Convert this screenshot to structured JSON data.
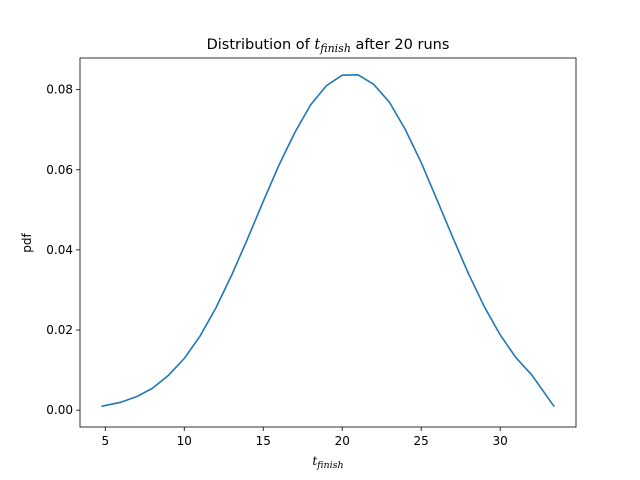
{
  "chart_data": {
    "type": "line",
    "title": {
      "prefix": "Distribution of ",
      "var": "t",
      "sub": "finish",
      "suffix": " after 20 runs"
    },
    "xlabel": {
      "var": "t",
      "sub": "finish"
    },
    "ylabel": "pdf",
    "xlim": [
      3.4,
      34.8
    ],
    "ylim": [
      -0.0042,
      0.0879
    ],
    "xticks": [
      5,
      10,
      15,
      20,
      25,
      30
    ],
    "xtick_labels": [
      "5",
      "10",
      "15",
      "20",
      "25",
      "30"
    ],
    "yticks": [
      0.0,
      0.02,
      0.04,
      0.06,
      0.08
    ],
    "ytick_labels": [
      "0.00",
      "0.02",
      "0.04",
      "0.06",
      "0.08"
    ],
    "grid": false,
    "line_color": "#1f77b4",
    "series": [
      {
        "x": [
          4.8,
          6.0,
          7.0,
          8.0,
          9.0,
          10.0,
          11.0,
          12.0,
          13.0,
          14.0,
          15.0,
          16.0,
          17.0,
          18.0,
          19.0,
          20.0,
          21.0,
          22.0,
          23.0,
          24.0,
          25.0,
          26.0,
          27.0,
          28.0,
          29.0,
          30.0,
          31.0,
          32.0,
          33.4
        ],
        "y": [
          0.001,
          0.002,
          0.0034,
          0.0055,
          0.0087,
          0.0129,
          0.0185,
          0.0255,
          0.0337,
          0.0427,
          0.0521,
          0.0612,
          0.0693,
          0.0762,
          0.081,
          0.0836,
          0.0837,
          0.0813,
          0.0768,
          0.07,
          0.0618,
          0.0525,
          0.0431,
          0.034,
          0.0258,
          0.0188,
          0.0131,
          0.0088,
          0.001
        ]
      }
    ]
  }
}
